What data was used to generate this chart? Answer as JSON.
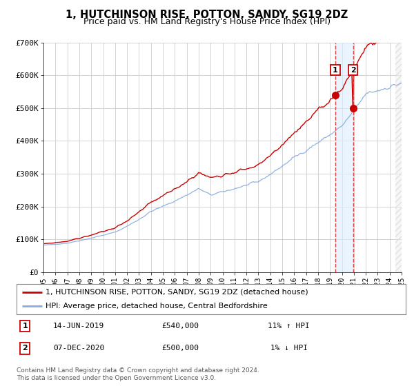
{
  "title": "1, HUTCHINSON RISE, POTTON, SANDY, SG19 2DZ",
  "subtitle": "Price paid vs. HM Land Registry's House Price Index (HPI)",
  "title_fontsize": 10.5,
  "subtitle_fontsize": 9,
  "background_color": "#ffffff",
  "plot_bg_color": "#ffffff",
  "grid_color": "#cccccc",
  "legend1_label": "1, HUTCHINSON RISE, POTTON, SANDY, SG19 2DZ (detached house)",
  "legend2_label": "HPI: Average price, detached house, Central Bedfordshire",
  "line1_color": "#cc0000",
  "line2_color": "#88aadd",
  "marker_color": "#cc0000",
  "vline_color": "#dd4444",
  "shade_color": "#ddeeff",
  "annotation1": {
    "label": "1",
    "date_str": "14-JUN-2019",
    "price": "£540,000",
    "hpi_pct": "11% ↑ HPI",
    "x": 2019.45
  },
  "annotation2": {
    "label": "2",
    "date_str": "07-DEC-2020",
    "price": "£500,000",
    "hpi_pct": "1% ↓ HPI",
    "x": 2020.93
  },
  "marker1_y": 540000,
  "marker2_y": 500000,
  "ylim": [
    0,
    700000
  ],
  "xlim": [
    1995,
    2025
  ],
  "yticks": [
    0,
    100000,
    200000,
    300000,
    400000,
    500000,
    600000,
    700000
  ],
  "ytick_labels": [
    "£0",
    "£100K",
    "£200K",
    "£300K",
    "£400K",
    "£500K",
    "£600K",
    "£700K"
  ],
  "xticks": [
    1995,
    1996,
    1997,
    1998,
    1999,
    2000,
    2001,
    2002,
    2003,
    2004,
    2005,
    2006,
    2007,
    2008,
    2009,
    2010,
    2011,
    2012,
    2013,
    2014,
    2015,
    2016,
    2017,
    2018,
    2019,
    2020,
    2021,
    2022,
    2023,
    2024,
    2025
  ],
  "footer1": "Contains HM Land Registry data © Crown copyright and database right 2024.",
  "footer2": "This data is licensed under the Open Government Licence v3.0."
}
